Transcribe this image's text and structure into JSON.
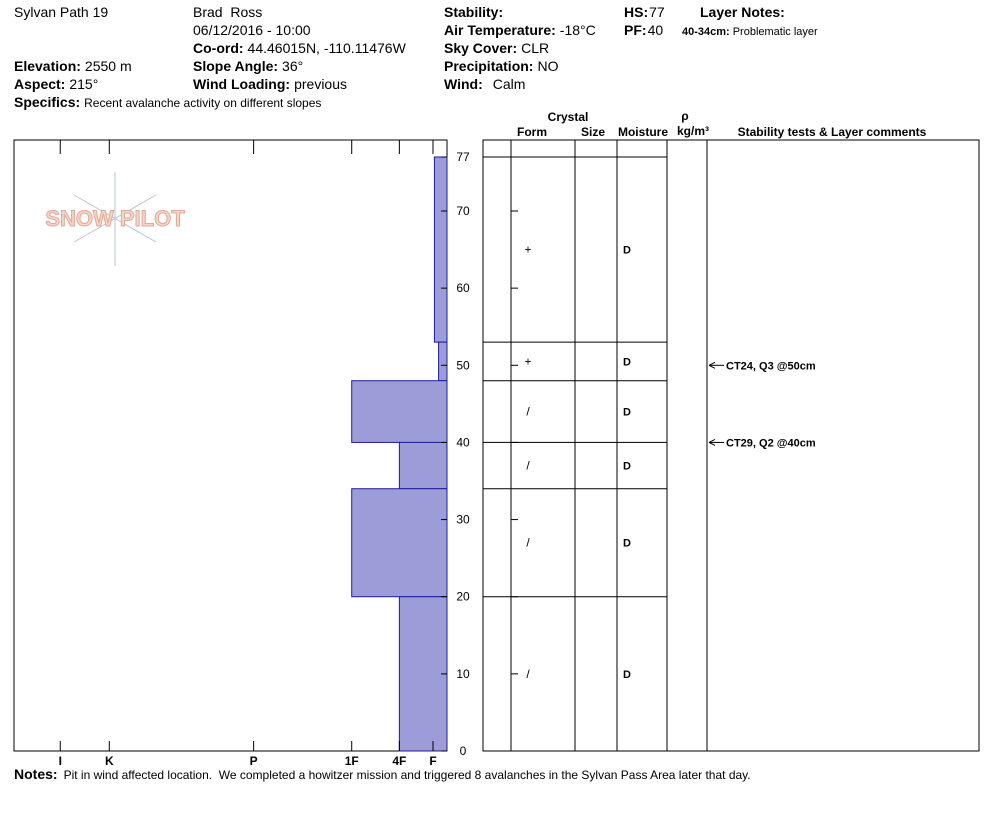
{
  "header": {
    "site": "Sylvan Path 19",
    "observer": "Brad  Ross",
    "datetime": "06/12/2016 - 10:00",
    "fields": [
      {
        "label": "Stability:"
      },
      {
        "label": "Air Temperature:",
        "value": "-18°C"
      },
      {
        "label": "Sky Cover:",
        "value": "CLR"
      },
      {
        "label": "Precipitation:",
        "value": "NO"
      },
      {
        "label": "Wind:",
        "value": "Calm"
      },
      {
        "label": "Co-ord:",
        "value": "44.46015N, -110.11476W"
      },
      {
        "label": "Elevation:",
        "value": "2550 m"
      },
      {
        "label": "Slope Angle:",
        "value": "36°"
      },
      {
        "label": "Aspect:",
        "value": "215°"
      },
      {
        "label": "Wind Loading:",
        "value": "previous"
      },
      {
        "label": "HS:",
        "value": 77
      },
      {
        "label": "PF:",
        "value": 40
      },
      {
        "label": "Specifics:",
        "value": "Recent avalanche activity on different slopes"
      }
    ],
    "layer_notes": {
      "label": "Layer Notes:",
      "items": [
        {
          "range": "40-34cm:",
          "text": "Problematic layer"
        }
      ]
    }
  },
  "logo": "SNOW PILOT",
  "notes": {
    "label": "Notes:",
    "value": "Pit in wind affected location.  We completed a howitzer mission and triggered 8 avalanches in the Sylvan Pass Area later that day."
  },
  "chart_data": {
    "type": "snow-profile",
    "ylim": [
      0,
      77
    ],
    "yticks": [
      0,
      10,
      20,
      30,
      40,
      50,
      60,
      70,
      77
    ],
    "xlim": [
      30.9,
      0
    ],
    "xticks": [
      {
        "value": 27.6,
        "label": "I"
      },
      {
        "value": 24.1,
        "label": "K"
      },
      {
        "value": 13.8,
        "label": "P"
      },
      {
        "value": 6.8,
        "label": "1F"
      },
      {
        "value": 3.4,
        "label": "4F"
      },
      {
        "value": 1,
        "label": "F"
      }
    ],
    "bar_color": "#9c9cd8",
    "columns": {
      "crystal": "Crystal",
      "form": "Form",
      "size": "Size",
      "moisture": "Moisture",
      "density_symbol": "ρ",
      "density_unit": "kg/m³",
      "comments": "Stability tests & Layer comments"
    },
    "layers": [
      {
        "top": 77,
        "bottom": 53,
        "hardness": 0.9,
        "form": "+",
        "moisture": "D"
      },
      {
        "top": 53,
        "bottom": 48,
        "hardness": 0.6,
        "form": "+",
        "moisture": "D"
      },
      {
        "top": 48,
        "bottom": 40,
        "hardness": 6.8,
        "form": "/",
        "moisture": "D"
      },
      {
        "top": 40,
        "bottom": 34,
        "hardness": 3.4,
        "form": "/",
        "moisture": "D"
      },
      {
        "top": 34,
        "bottom": 20,
        "hardness": 6.8,
        "form": "/",
        "moisture": "D"
      },
      {
        "top": 20,
        "bottom": 0,
        "hardness": 3.4,
        "form": "/",
        "moisture": "D"
      }
    ],
    "tests": [
      {
        "depth": 50,
        "label": "CT24, Q3 @50cm"
      },
      {
        "depth": 40,
        "label": "CT29, Q2 @40cm"
      }
    ]
  }
}
